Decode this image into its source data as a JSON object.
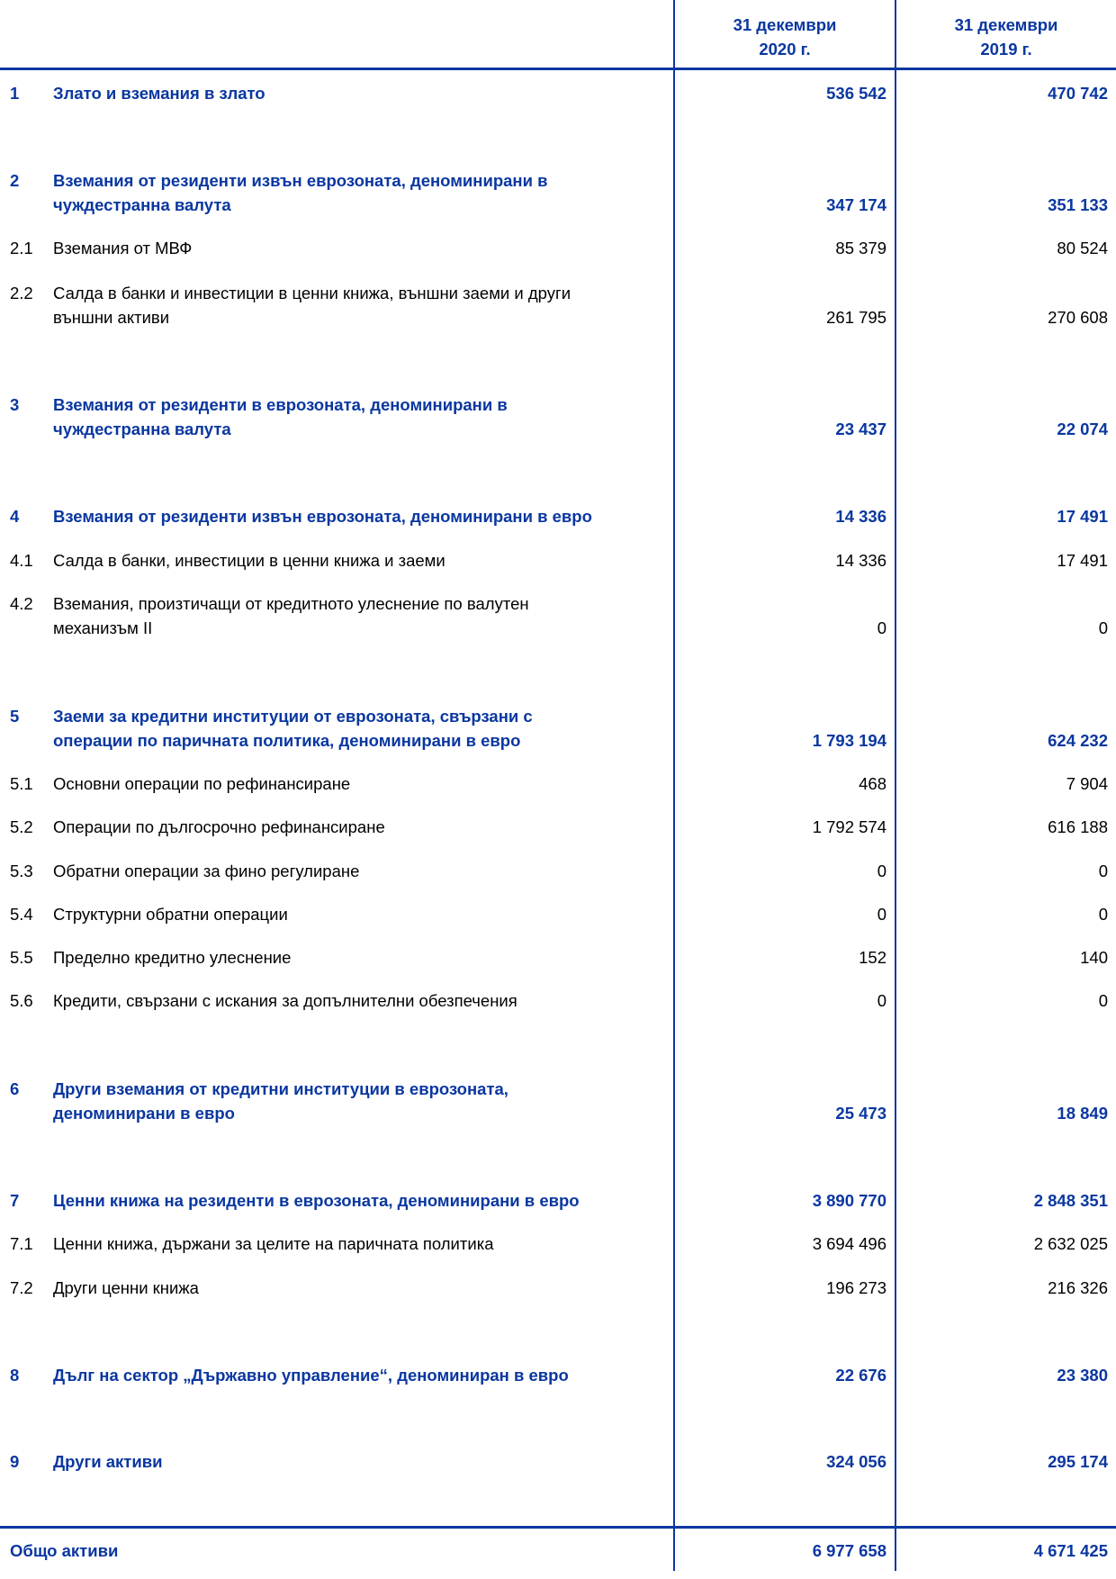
{
  "header": {
    "col_2020": [
      "31 декември",
      "2020 г."
    ],
    "col_2019": [
      "31 декември",
      "2019 г."
    ]
  },
  "colors": {
    "accent": "#0a37a0"
  },
  "rows": [
    {
      "num": "1",
      "label": [
        "Злато и вземания в злато"
      ],
      "v2020": "536 542",
      "v2019": "470 742",
      "bold": true
    },
    {
      "num": "2",
      "label": [
        "Вземания от резиденти извън еврозоната, деноминирани в",
        "чуждестранна валута"
      ],
      "v2020": "347 174",
      "v2019": "351 133",
      "bold": true
    },
    {
      "num": "2.1",
      "label": [
        "Вземания от МВФ"
      ],
      "v2020": "85 379",
      "v2019": "80 524",
      "bold": false
    },
    {
      "num": "2.2",
      "label": [
        "Салда в банки и инвестиции в ценни книжа, външни заеми и други",
        "външни активи"
      ],
      "v2020": "261 795",
      "v2019": "270 608",
      "bold": false
    },
    {
      "num": "3",
      "label": [
        "Вземания от резиденти в еврозоната, деноминирани в",
        "чуждестранна валута"
      ],
      "v2020": "23 437",
      "v2019": "22 074",
      "bold": true
    },
    {
      "num": "4",
      "label": [
        "Вземания от резиденти извън еврозоната, деноминирани в евро"
      ],
      "v2020": "14 336",
      "v2019": "17 491",
      "bold": true
    },
    {
      "num": "4.1",
      "label": [
        "Салда в банки, инвестиции в ценни книжа и заеми"
      ],
      "v2020": "14 336",
      "v2019": "17 491",
      "bold": false
    },
    {
      "num": "4.2",
      "label": [
        "Вземания, произтичащи от кредитното улеснение по валутен",
        "механизъм II"
      ],
      "v2020": "0",
      "v2019": "0",
      "bold": false
    },
    {
      "num": "5",
      "label": [
        "Заеми за кредитни институции от еврозоната, свързани с",
        "операции по паричната политика, деноминирани в евро"
      ],
      "v2020": "1 793 194",
      "v2019": "624 232",
      "bold": true
    },
    {
      "num": "5.1",
      "label": [
        "Основни операции по рефинансиране"
      ],
      "v2020": "468",
      "v2019": "7 904",
      "bold": false
    },
    {
      "num": "5.2",
      "label": [
        "Операции по дългосрочно рефинансиране"
      ],
      "v2020": "1 792 574",
      "v2019": "616 188",
      "bold": false
    },
    {
      "num": "5.3",
      "label": [
        "Обратни операции за фино регулиране"
      ],
      "v2020": "0",
      "v2019": "0",
      "bold": false
    },
    {
      "num": "5.4",
      "label": [
        "Структурни обратни операции"
      ],
      "v2020": "0",
      "v2019": "0",
      "bold": false
    },
    {
      "num": "5.5",
      "label": [
        "Пределно кредитно улеснение"
      ],
      "v2020": "152",
      "v2019": "140",
      "bold": false
    },
    {
      "num": "5.6",
      "label": [
        "Кредити, свързани с искания за допълнителни обезпечения"
      ],
      "v2020": "0",
      "v2019": "0",
      "bold": false
    },
    {
      "num": "6",
      "label": [
        "Други вземания от кредитни институции в еврозоната,",
        "деноминирани в евро"
      ],
      "v2020": "25 473",
      "v2019": "18 849",
      "bold": true
    },
    {
      "num": "7",
      "label": [
        "Ценни книжа на резиденти в еврозоната, деноминирани в евро"
      ],
      "v2020": "3 890 770",
      "v2019": "2 848 351",
      "bold": true
    },
    {
      "num": "7.1",
      "label": [
        "Ценни книжа, държани за целите на паричната политика"
      ],
      "v2020": "3 694 496",
      "v2019": "2 632 025",
      "bold": false
    },
    {
      "num": "7.2",
      "label": [
        "Други ценни книжа"
      ],
      "v2020": "196 273",
      "v2019": "216 326",
      "bold": false
    },
    {
      "num": "8",
      "label": [
        "Дълг на сектор „Държавно управление“, деноминиран в евро"
      ],
      "v2020": "22 676",
      "v2019": "23 380",
      "bold": true
    },
    {
      "num": "9",
      "label": [
        "Други активи"
      ],
      "v2020": "324 056",
      "v2019": "295 174",
      "bold": true
    }
  ],
  "total": {
    "label": "Общо активи",
    "v2020": "6 977 658",
    "v2019": "4 671 425"
  }
}
